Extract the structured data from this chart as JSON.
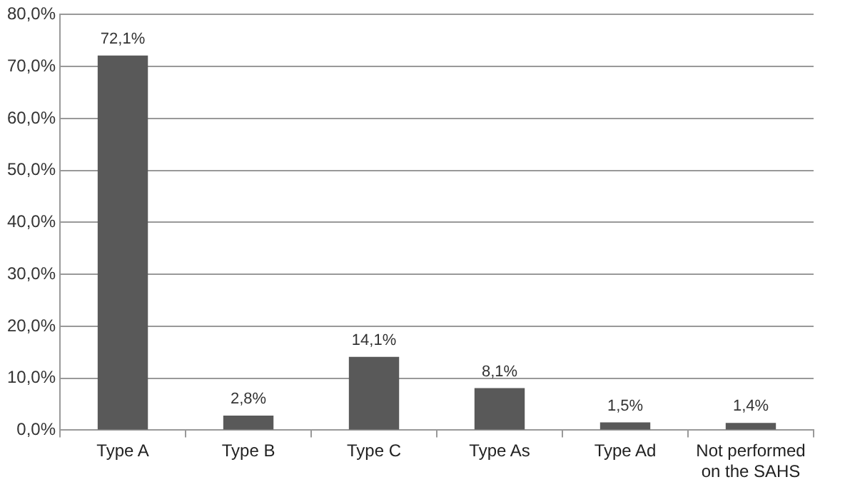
{
  "chart_data": {
    "type": "bar",
    "categories": [
      "Type A",
      "Type B",
      "Type C",
      "Type As",
      "Type Ad",
      "Not performed on the SAHS"
    ],
    "values": [
      72.1,
      2.8,
      14.1,
      8.1,
      1.5,
      1.4
    ],
    "value_labels": [
      "72,1%",
      "2,8%",
      "14,1%",
      "8,1%",
      "1,5%",
      "1,4%"
    ],
    "color": "#595959",
    "ylim": [
      0,
      80
    ],
    "yticks": [
      {
        "value": 0,
        "label": "0,0%"
      },
      {
        "value": 10,
        "label": "10,0%"
      },
      {
        "value": 20,
        "label": "20,0%"
      },
      {
        "value": 30,
        "label": "30,0%"
      },
      {
        "value": 40,
        "label": "40,0%"
      },
      {
        "value": 50,
        "label": "50,0%"
      },
      {
        "value": 60,
        "label": "60,0%"
      },
      {
        "value": 70,
        "label": "70,0%"
      },
      {
        "value": 80,
        "label": "80,0%"
      }
    ],
    "grid": "y"
  }
}
